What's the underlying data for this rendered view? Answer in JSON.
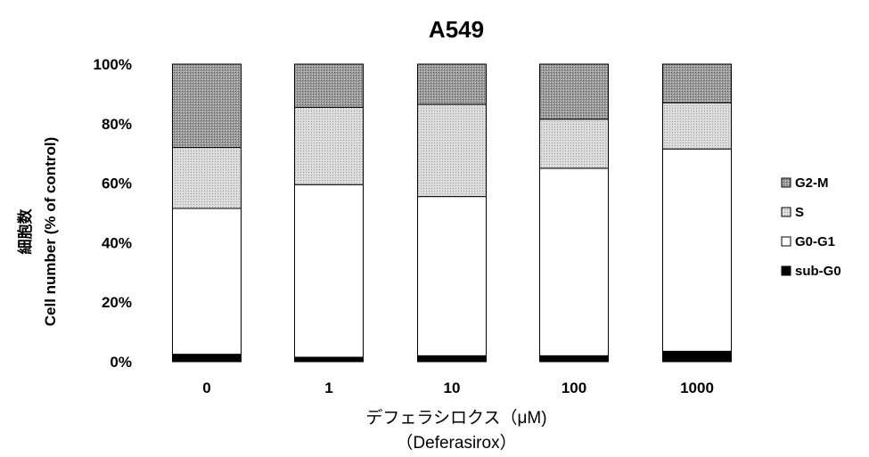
{
  "chart_data": {
    "type": "bar",
    "stacked": true,
    "title": "A549",
    "xlabel_line1": "デフェラシロクス（μM)",
    "xlabel_line2": "（Deferasirox）",
    "ylabel_line1": "細胞数",
    "ylabel_line2": "Cell number (% of control)",
    "categories": [
      "0",
      "1",
      "10",
      "100",
      "1000"
    ],
    "y_ticks": [
      "0%",
      "20%",
      "40%",
      "60%",
      "80%",
      "100%"
    ],
    "ylim": [
      0,
      100
    ],
    "series": [
      {
        "name": "sub-G0",
        "values": [
          2.5,
          1.5,
          2,
          2,
          3.5
        ],
        "color": "#000000"
      },
      {
        "name": "G0-G1",
        "values": [
          49,
          58,
          53.5,
          63,
          68
        ],
        "color": "#ffffff"
      },
      {
        "name": "S",
        "values": [
          20.5,
          26,
          31,
          16.5,
          15.5
        ],
        "color": "#d0d0d0"
      },
      {
        "name": "G2-M",
        "values": [
          28,
          14.5,
          13.5,
          18.5,
          13
        ],
        "color": "#a8a8a8"
      }
    ],
    "legend_order": [
      "G2-M",
      "S",
      "G0-G1",
      "sub-G0"
    ],
    "legend_markers": [
      "▩",
      "▩",
      "□",
      "■"
    ],
    "legend_position": "right"
  }
}
